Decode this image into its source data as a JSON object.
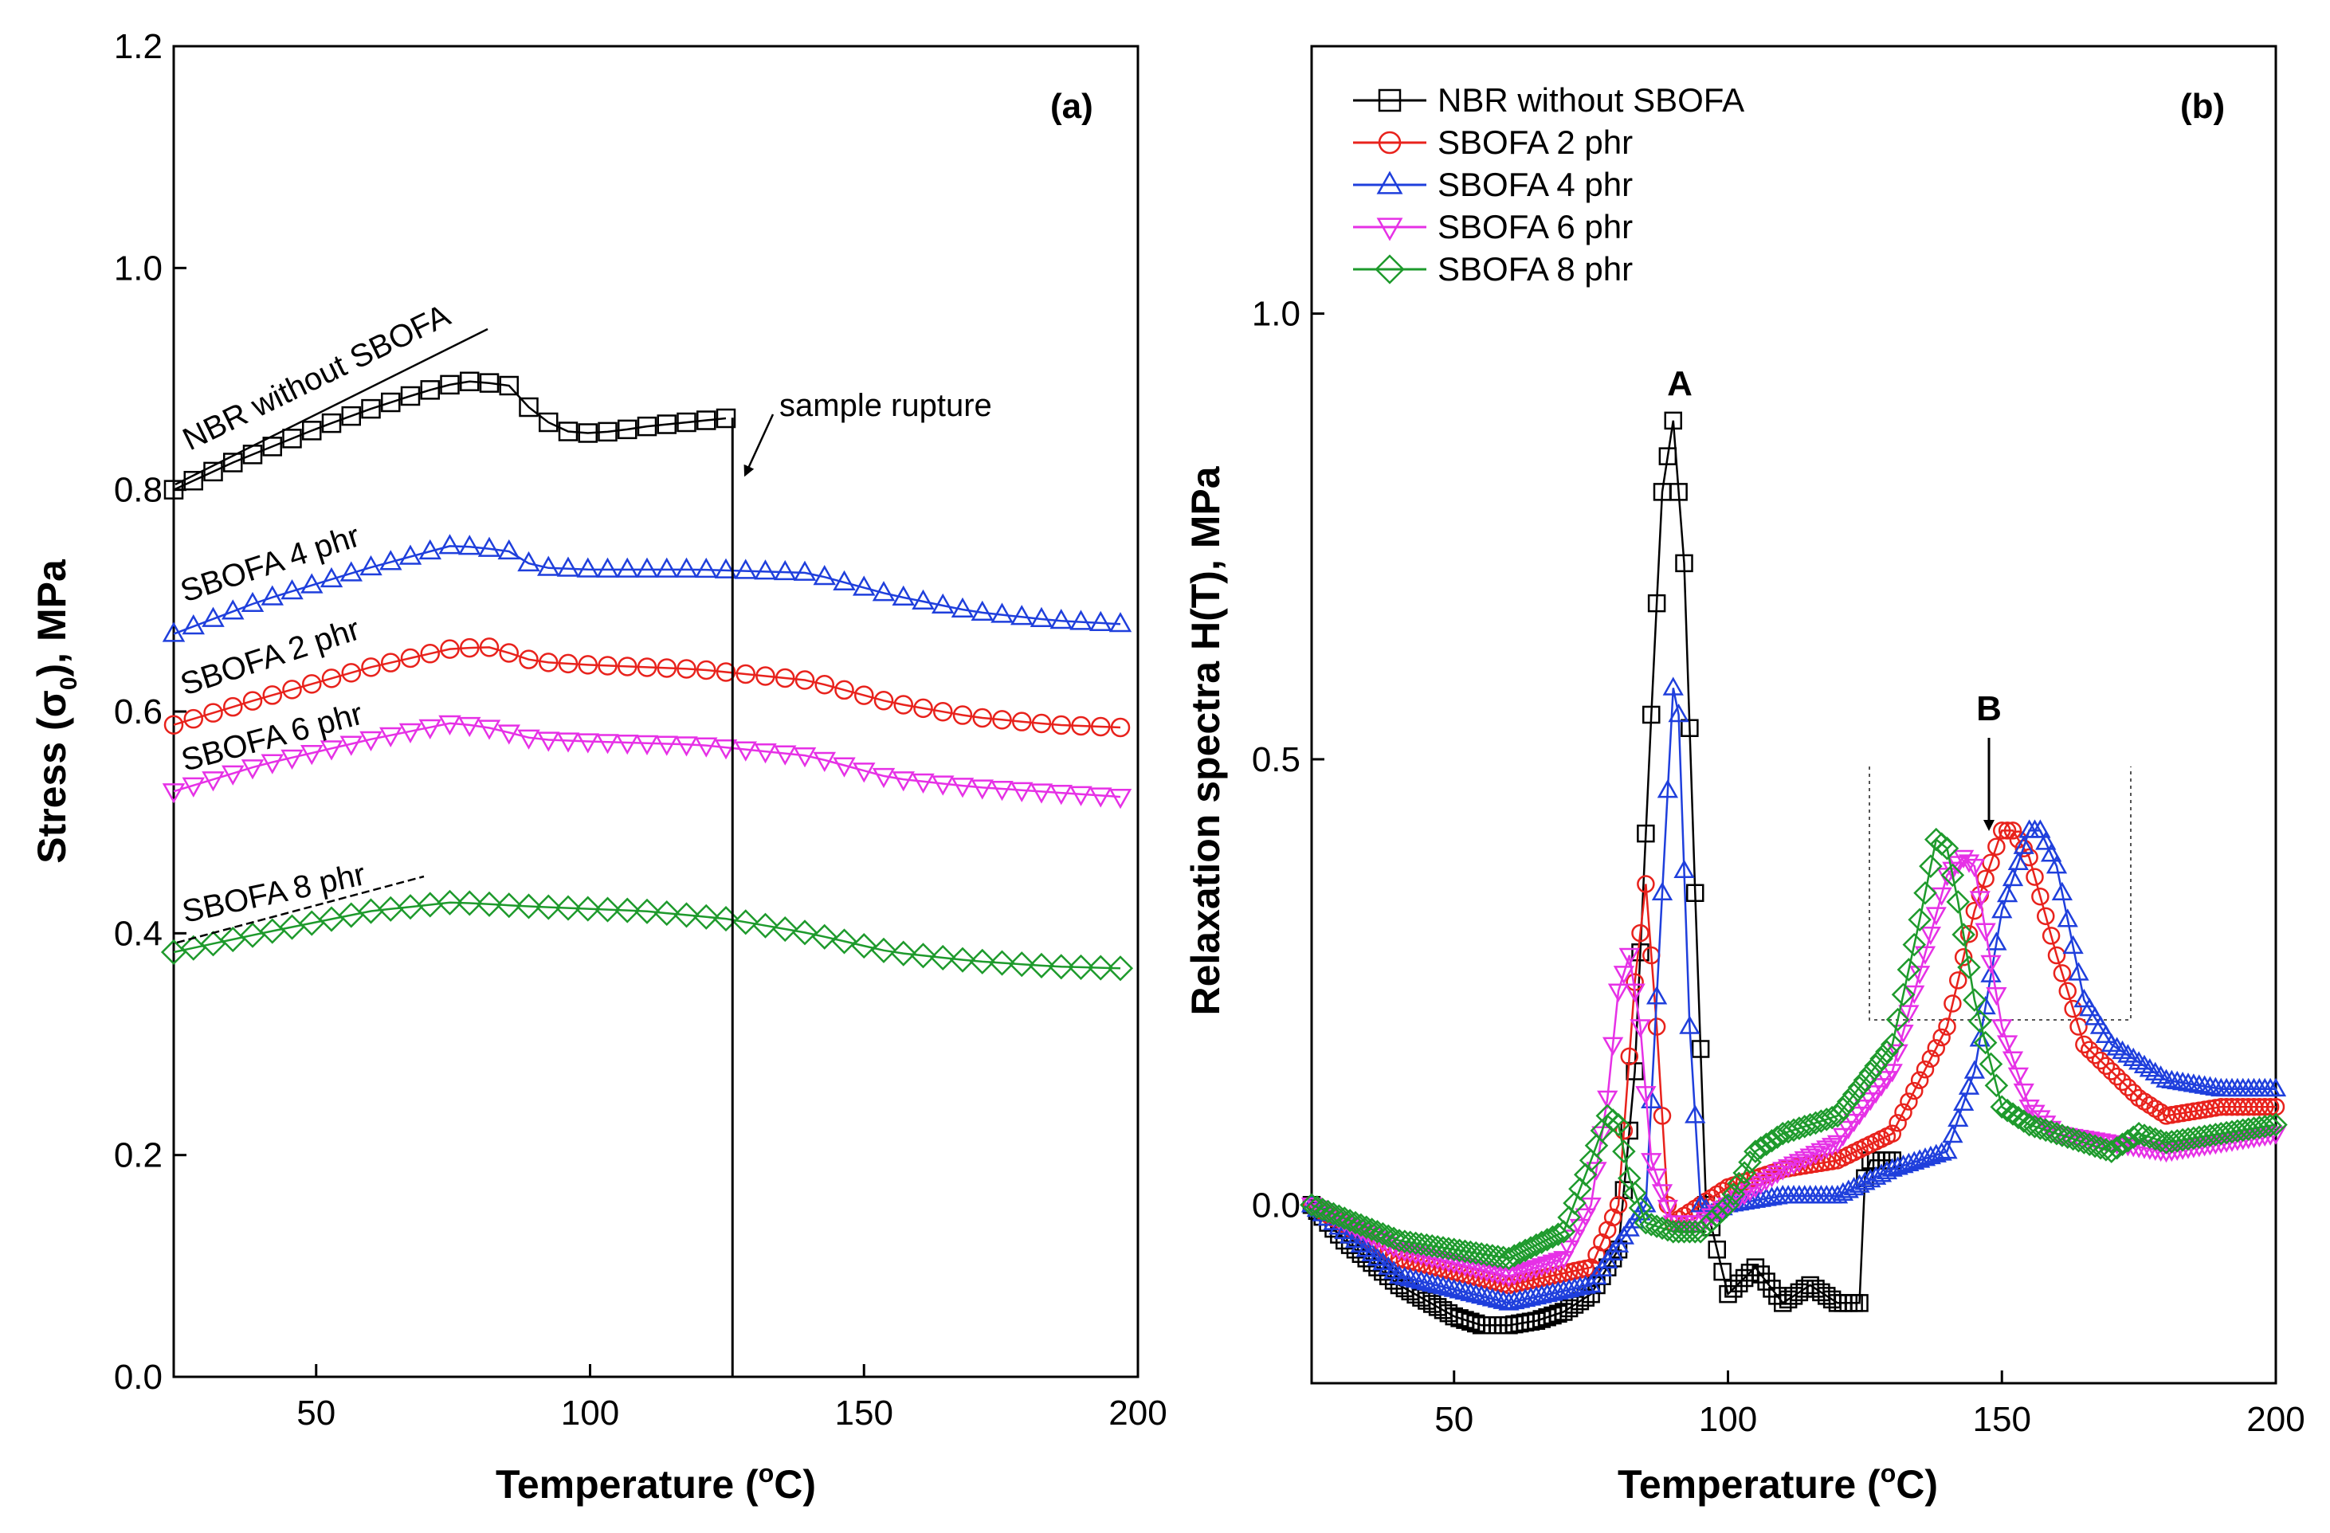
{
  "chart_data": [
    {
      "type": "line",
      "panel_label": "(a)",
      "xlabel": "Temperature (",
      "xlabel_sup": "o",
      "xlabel_tail": "C)",
      "ylabel": "Stress (σ",
      "ylabel_sub": "0",
      "ylabel_tail": "), MPa",
      "xlim": [
        24,
        200
      ],
      "ylim": [
        0,
        1.2
      ],
      "xticks": [
        50,
        100,
        150,
        200
      ],
      "yticks": [
        0.0,
        0.2,
        0.4,
        0.6,
        0.8,
        1.0,
        1.2
      ],
      "xtick_labels": [
        "50",
        "100",
        "150",
        "200"
      ],
      "ytick_labels": [
        "0.0",
        "0.2",
        "0.4",
        "0.6",
        "0.8",
        "1.0",
        "1.2"
      ],
      "series": [
        {
          "name": "NBR without SBOFA",
          "color": "#000000",
          "marker": "square",
          "x": [
            24,
            35,
            50,
            60,
            70,
            77,
            85,
            90,
            95,
            100,
            105,
            110,
            120,
            126
          ],
          "y": [
            0.8,
            0.825,
            0.855,
            0.873,
            0.889,
            0.898,
            0.895,
            0.868,
            0.853,
            0.851,
            0.853,
            0.857,
            0.862,
            0.865
          ]
        },
        {
          "name": "SBOFA 4 phr",
          "color": "#1f3fdc",
          "marker": "triangle-up",
          "x": [
            24,
            40,
            60,
            75,
            85,
            90,
            100,
            120,
            140,
            155,
            170,
            185,
            200
          ],
          "y": [
            0.67,
            0.7,
            0.73,
            0.75,
            0.745,
            0.73,
            0.728,
            0.728,
            0.725,
            0.705,
            0.69,
            0.682,
            0.678
          ]
        },
        {
          "name": "SBOFA 2 phr",
          "color": "#e8221c",
          "marker": "circle",
          "x": [
            24,
            40,
            60,
            75,
            82,
            90,
            100,
            120,
            140,
            155,
            170,
            185,
            200
          ],
          "y": [
            0.588,
            0.612,
            0.64,
            0.657,
            0.658,
            0.645,
            0.642,
            0.638,
            0.628,
            0.608,
            0.595,
            0.588,
            0.585
          ]
        },
        {
          "name": "SBOFA 6 phr",
          "color": "#e631e6",
          "marker": "triangle-down",
          "x": [
            24,
            40,
            60,
            75,
            82,
            90,
            100,
            120,
            140,
            155,
            170,
            185,
            200
          ],
          "y": [
            0.528,
            0.552,
            0.575,
            0.59,
            0.585,
            0.575,
            0.573,
            0.57,
            0.56,
            0.54,
            0.532,
            0.527,
            0.522
          ]
        },
        {
          "name": "SBOFA 8 phr",
          "color": "#1e9a2c",
          "marker": "diamond",
          "x": [
            24,
            40,
            60,
            75,
            90,
            110,
            125,
            140,
            155,
            170,
            185,
            200
          ],
          "y": [
            0.383,
            0.4,
            0.42,
            0.428,
            0.424,
            0.42,
            0.413,
            0.4,
            0.383,
            0.375,
            0.37,
            0.368
          ]
        }
      ],
      "annotations": {
        "labels": [
          "NBR without SBOFA",
          "SBOFA 4 phr",
          "SBOFA 2 phr",
          "SBOFA 6 phr",
          "SBOFA 8 phr"
        ],
        "rupture_text": "sample rupture",
        "rupture_x": 126
      }
    },
    {
      "type": "line",
      "panel_label": "(b)",
      "xlabel": "Temperature (",
      "xlabel_sup": "o",
      "xlabel_tail": "C)",
      "ylabel": "Relaxation spectra H(T), MPa",
      "xlim": [
        24,
        200
      ],
      "ylim": [
        -0.2,
        1.3
      ],
      "xticks": [
        50,
        100,
        150,
        200
      ],
      "yticks": [
        0.0,
        0.5,
        1.0
      ],
      "xtick_labels": [
        "50",
        "100",
        "150",
        "200"
      ],
      "ytick_labels": [
        "0.0",
        "0.5",
        "1.0"
      ],
      "peak_labels": [
        "A",
        "B"
      ],
      "legend_position": "top-left",
      "series": [
        {
          "name": "NBR without SBOFA",
          "color": "#000000",
          "marker": "square",
          "x": [
            24,
            30,
            40,
            50,
            55,
            60,
            65,
            70,
            75,
            80,
            83,
            86,
            88,
            90,
            92,
            94,
            96,
            100,
            105,
            110,
            115,
            120,
            124,
            125,
            126,
            128,
            130
          ],
          "y": [
            0.0,
            -0.04,
            -0.09,
            -0.125,
            -0.135,
            -0.135,
            -0.13,
            -0.12,
            -0.1,
            -0.05,
            0.15,
            0.55,
            0.8,
            0.88,
            0.72,
            0.35,
            0.0,
            -0.1,
            -0.07,
            -0.11,
            -0.09,
            -0.11,
            -0.11,
            0.03,
            0.05,
            0.05,
            0.05
          ]
        },
        {
          "name": "SBOFA 2 phr",
          "color": "#e8221c",
          "marker": "circle",
          "x": [
            24,
            40,
            60,
            75,
            80,
            83,
            85,
            87,
            89,
            90,
            95,
            100,
            110,
            120,
            130,
            140,
            145,
            150,
            152,
            155,
            160,
            165,
            170,
            175,
            180,
            190,
            200
          ],
          "y": [
            0.0,
            -0.06,
            -0.09,
            -0.07,
            0.0,
            0.25,
            0.36,
            0.2,
            0.0,
            -0.02,
            0.0,
            0.02,
            0.04,
            0.05,
            0.08,
            0.2,
            0.33,
            0.42,
            0.42,
            0.39,
            0.28,
            0.18,
            0.15,
            0.12,
            0.1,
            0.11,
            0.11
          ]
        },
        {
          "name": "SBOFA 4 phr",
          "color": "#1f3fdc",
          "marker": "triangle-up",
          "x": [
            24,
            40,
            60,
            75,
            85,
            88,
            90,
            91,
            93,
            95,
            97,
            100,
            110,
            120,
            130,
            140,
            145,
            150,
            155,
            157,
            160,
            165,
            170,
            180,
            190,
            200
          ],
          "y": [
            0.0,
            -0.08,
            -0.11,
            -0.09,
            0.0,
            0.35,
            0.58,
            0.55,
            0.2,
            0.0,
            -0.01,
            0.0,
            0.01,
            0.01,
            0.04,
            0.06,
            0.15,
            0.33,
            0.42,
            0.42,
            0.38,
            0.23,
            0.18,
            0.14,
            0.13,
            0.13
          ]
        },
        {
          "name": "SBOFA 6 phr",
          "color": "#e631e6",
          "marker": "triangle-down",
          "x": [
            24,
            40,
            60,
            70,
            75,
            78,
            80,
            82,
            84,
            86,
            90,
            95,
            100,
            110,
            120,
            130,
            135,
            140,
            143,
            145,
            150,
            155,
            160,
            170,
            180,
            190,
            200
          ],
          "y": [
            0.0,
            -0.05,
            -0.08,
            -0.06,
            0.0,
            0.12,
            0.24,
            0.28,
            0.2,
            0.05,
            -0.02,
            -0.02,
            0.0,
            0.04,
            0.07,
            0.15,
            0.26,
            0.37,
            0.39,
            0.38,
            0.2,
            0.11,
            0.08,
            0.07,
            0.06,
            0.07,
            0.08
          ]
        },
        {
          "name": "SBOFA 8 phr",
          "color": "#1e9a2c",
          "marker": "diamond",
          "x": [
            24,
            40,
            60,
            70,
            75,
            78,
            80,
            82,
            85,
            90,
            95,
            100,
            105,
            110,
            120,
            130,
            135,
            138,
            140,
            142,
            145,
            150,
            155,
            160,
            170,
            175,
            180,
            190,
            200
          ],
          "y": [
            0.0,
            -0.04,
            -0.06,
            -0.03,
            0.05,
            0.1,
            0.09,
            0.03,
            -0.02,
            -0.03,
            -0.03,
            0.0,
            0.06,
            0.08,
            0.1,
            0.18,
            0.32,
            0.41,
            0.4,
            0.34,
            0.23,
            0.11,
            0.09,
            0.08,
            0.06,
            0.08,
            0.07,
            0.08,
            0.09
          ]
        }
      ]
    }
  ]
}
